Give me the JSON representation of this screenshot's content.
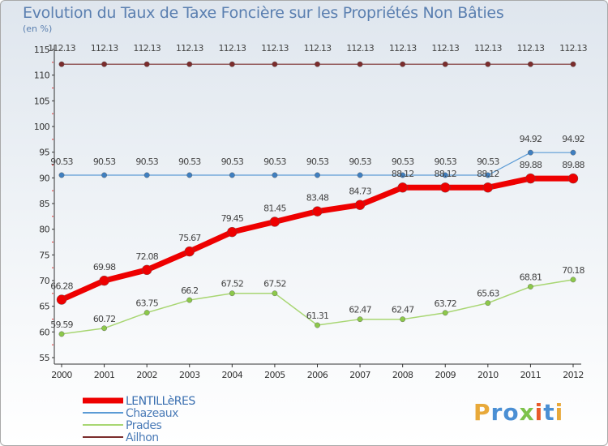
{
  "title": "Evolution du Taux de Taxe Foncière sur les Propriétés Non Bâties",
  "unit": "(en %)",
  "brand": "Proxiti",
  "chart_data": {
    "type": "line",
    "title": "Evolution du Taux de Taxe Foncière sur les Propriétés Non Bâties",
    "ylabel": "(en %)",
    "xlabel": "",
    "ylim": [
      55,
      115
    ],
    "yticks": [
      55,
      60,
      65,
      70,
      75,
      80,
      85,
      90,
      95,
      100,
      105,
      110,
      115
    ],
    "x": [
      "2000",
      "2001",
      "2002",
      "2003",
      "2004",
      "2005",
      "2006",
      "2007",
      "2008",
      "2009",
      "2010",
      "2011",
      "2012"
    ],
    "grid": false,
    "legend_position": "bottom-left",
    "series": [
      {
        "name": "Ailhon",
        "color": "#7b2c2c",
        "values": [
          112.13,
          112.13,
          112.13,
          112.13,
          112.13,
          112.13,
          112.13,
          112.13,
          112.13,
          112.13,
          112.13,
          112.13,
          112.13
        ],
        "labels": [
          "112.13",
          "112.13",
          "112.13",
          "112.13",
          "112.13",
          "112.13",
          "112.13",
          "112.13",
          "112.13",
          "112.13",
          "112.13",
          "112.13",
          "112.13"
        ]
      },
      {
        "name": "Chazeaux",
        "color": "#5b9bd5",
        "values": [
          90.53,
          90.53,
          90.53,
          90.53,
          90.53,
          90.53,
          90.53,
          90.53,
          90.53,
          90.53,
          90.53,
          94.92,
          94.92
        ],
        "labels": [
          "90.53",
          "90.53",
          "90.53",
          "90.53",
          "90.53",
          "90.53",
          "90.53",
          "90.53",
          "90.53",
          "90.53",
          "90.53",
          "94.92",
          "94.92"
        ]
      },
      {
        "name": "Prades",
        "color": "#a8d672",
        "values": [
          59.59,
          60.72,
          63.75,
          66.2,
          67.52,
          67.52,
          61.31,
          62.47,
          62.47,
          63.72,
          65.63,
          68.81,
          70.18
        ],
        "labels": [
          "59.59",
          "60.72",
          "63.75",
          "66.2",
          "67.52",
          "67.52",
          "61.31",
          "62.47",
          "62.47",
          "63.72",
          "65.63",
          "68.81",
          "70.18"
        ]
      },
      {
        "name": "LENTILLèRES",
        "color": "#ee0000",
        "values": [
          66.28,
          69.98,
          72.08,
          75.67,
          79.45,
          81.45,
          83.48,
          84.73,
          88.12,
          88.12,
          88.12,
          89.88,
          89.88
        ],
        "labels": [
          "66.28",
          "69.98",
          "72.08",
          "75.67",
          "79.45",
          "81.45",
          "83.48",
          "84.73",
          "88.12",
          "88.12",
          "88.12",
          "89.88",
          "89.88"
        ]
      }
    ]
  }
}
